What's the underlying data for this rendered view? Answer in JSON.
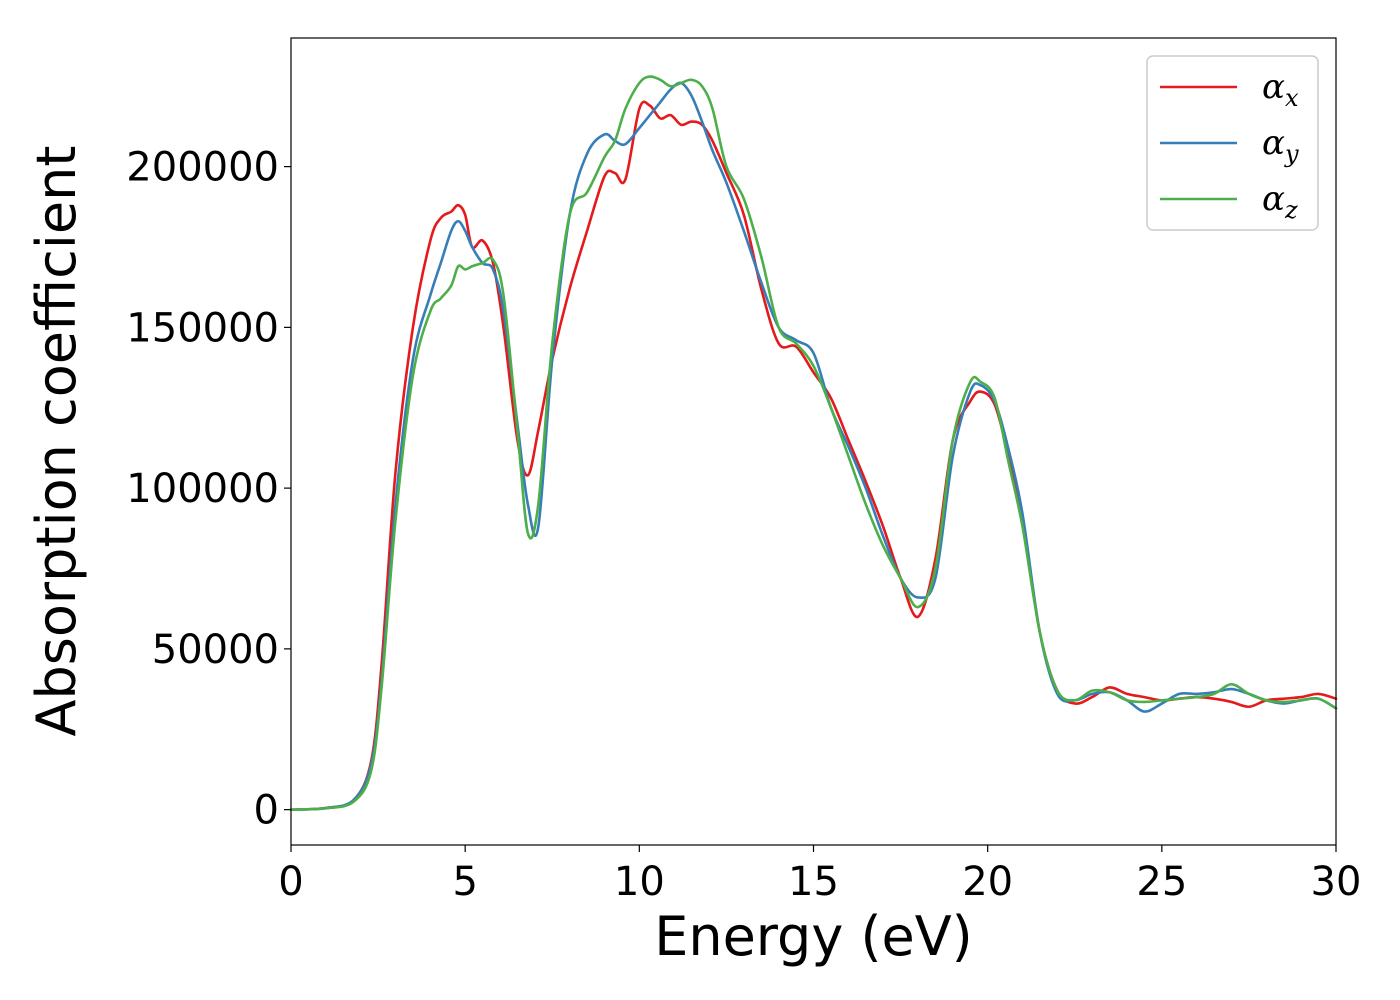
{
  "chart_data": {
    "type": "line",
    "title": "",
    "xlabel": "Energy (eV)",
    "ylabel": "Absorption coefficient",
    "xlim": [
      0,
      30
    ],
    "ylim": [
      -11000,
      240000
    ],
    "xticks": [
      0,
      5,
      10,
      15,
      20,
      25,
      30
    ],
    "yticks": [
      0,
      50000,
      100000,
      150000,
      200000
    ],
    "grid": false,
    "legend_position": "top-right",
    "series": [
      {
        "symbol": "α",
        "subscript": "x",
        "color": "#e41a1c",
        "x": [
          0,
          1,
          1.8,
          2.3,
          2.6,
          3,
          3.5,
          4,
          4.3,
          4.6,
          4.8,
          5.0,
          5.2,
          5.5,
          5.8,
          6.1,
          6.5,
          6.8,
          7.1,
          7.5,
          8,
          8.5,
          9,
          9.3,
          9.6,
          10,
          10.3,
          10.6,
          10.9,
          11.2,
          11.5,
          11.8,
          12.1,
          12.5,
          13,
          13.5,
          14,
          14.5,
          15,
          15.5,
          16,
          16.5,
          17,
          17.5,
          18,
          18.5,
          19,
          19.5,
          19.8,
          20.2,
          20.6,
          21,
          21.5,
          22,
          22.5,
          23,
          23.5,
          24,
          24.5,
          25,
          25.5,
          26,
          26.5,
          27,
          27.5,
          28,
          28.5,
          29,
          29.5,
          30
        ],
        "y": [
          0,
          500,
          3000,
          15000,
          45000,
          105000,
          150000,
          177000,
          184000,
          186000,
          188000,
          185000,
          175000,
          177000,
          170000,
          150000,
          115000,
          104000,
          118000,
          140000,
          162000,
          180000,
          197000,
          198000,
          196000,
          218000,
          219000,
          215000,
          216000,
          213000,
          214000,
          213000,
          208000,
          198000,
          185000,
          162000,
          145000,
          144000,
          136000,
          128000,
          115000,
          102000,
          88000,
          72000,
          60000,
          78000,
          115000,
          127000,
          130000,
          126000,
          110000,
          90000,
          55000,
          37000,
          33000,
          35000,
          38000,
          36000,
          35000,
          34000,
          34500,
          35000,
          34500,
          33500,
          32000,
          34000,
          34500,
          35000,
          36000,
          34500
        ]
      },
      {
        "symbol": "α",
        "subscript": "y",
        "color": "#377eb8",
        "x": [
          0,
          1,
          1.8,
          2.3,
          2.6,
          3,
          3.5,
          4,
          4.3,
          4.6,
          4.8,
          5.0,
          5.2,
          5.5,
          5.8,
          6.1,
          6.5,
          6.8,
          7.1,
          7.5,
          8,
          8.5,
          9,
          9.3,
          9.6,
          10,
          10.3,
          10.6,
          10.9,
          11.2,
          11.5,
          11.8,
          12.1,
          12.5,
          13,
          13.5,
          14,
          14.5,
          15,
          15.5,
          16,
          16.5,
          17,
          17.5,
          18,
          18.5,
          19,
          19.5,
          19.8,
          20.2,
          20.6,
          21,
          21.5,
          22,
          22.5,
          23,
          23.5,
          24,
          24.5,
          25,
          25.5,
          26,
          26.5,
          27,
          27.5,
          28,
          28.5,
          29,
          29.5,
          30
        ],
        "y": [
          0,
          500,
          3000,
          14000,
          40000,
          95000,
          140000,
          160000,
          170000,
          180000,
          183000,
          180000,
          175000,
          170000,
          168000,
          155000,
          120000,
          95000,
          88000,
          140000,
          185000,
          204000,
          210000,
          208000,
          207000,
          212000,
          216000,
          220000,
          224000,
          226000,
          222000,
          214000,
          205000,
          195000,
          180000,
          164000,
          150000,
          146000,
          142000,
          125000,
          113000,
          100000,
          85000,
          72000,
          66000,
          72000,
          110000,
          130000,
          132000,
          127000,
          112000,
          92000,
          55000,
          36000,
          34000,
          36000,
          36500,
          34000,
          30500,
          33000,
          36000,
          36000,
          36500,
          37500,
          36000,
          34000,
          33000,
          34000,
          34500,
          31500
        ]
      },
      {
        "symbol": "α",
        "subscript": "z",
        "color": "#4daf4a",
        "x": [
          0,
          1,
          1.8,
          2.3,
          2.6,
          3,
          3.5,
          4,
          4.3,
          4.6,
          4.8,
          5.0,
          5.2,
          5.5,
          5.8,
          6.1,
          6.5,
          6.8,
          7.1,
          7.5,
          8,
          8.5,
          9,
          9.3,
          9.6,
          10,
          10.3,
          10.6,
          10.9,
          11.2,
          11.5,
          11.8,
          12.1,
          12.5,
          13,
          13.5,
          14,
          14.5,
          15,
          15.5,
          16,
          16.5,
          17,
          17.5,
          18,
          18.5,
          19,
          19.5,
          19.8,
          20.2,
          20.6,
          21,
          21.5,
          22,
          22.5,
          23,
          23.5,
          24,
          24.5,
          25,
          25.5,
          26,
          26.5,
          27,
          27.5,
          28,
          28.5,
          29,
          29.5,
          30
        ],
        "y": [
          0,
          400,
          2500,
          12000,
          38000,
          90000,
          135000,
          155000,
          159000,
          163000,
          169000,
          168000,
          169000,
          170000,
          171000,
          160000,
          118000,
          86000,
          95000,
          145000,
          185000,
          192000,
          203000,
          208000,
          218000,
          226000,
          228000,
          227000,
          225000,
          226000,
          227000,
          225000,
          218000,
          200000,
          190000,
          172000,
          150000,
          145000,
          138000,
          125000,
          110000,
          95000,
          82000,
          72000,
          63000,
          75000,
          115000,
          133000,
          133000,
          128000,
          108000,
          88000,
          55000,
          37000,
          34000,
          37000,
          36500,
          34000,
          33500,
          34000,
          34500,
          35000,
          36000,
          39000,
          36000,
          34000,
          33500,
          34000,
          34500,
          31500
        ]
      }
    ]
  }
}
